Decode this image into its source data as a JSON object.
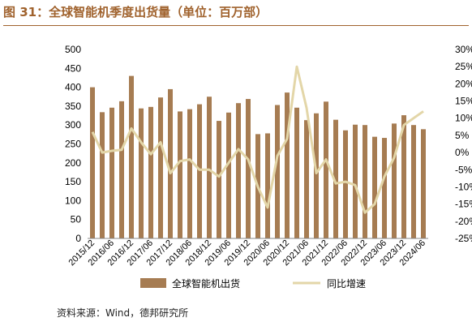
{
  "title": "图 31：全球智能机季度出货量（单位：百万部）",
  "source": "资料来源：Wind，德邦研究所",
  "colors": {
    "bar": "#A67C52",
    "line": "#E3D6A8",
    "title": "#A0622D"
  },
  "chart_data": {
    "type": "bar+line",
    "x_tick_labels": [
      "2015/12",
      "2016/06",
      "2016/12",
      "2017/06",
      "2017/12",
      "2018/06",
      "2018/12",
      "2019/06",
      "2019/12",
      "2020/06",
      "2020/12",
      "2021/06",
      "2021/12",
      "2022/06",
      "2022/12",
      "2023/06",
      "2023/12",
      "2024/06"
    ],
    "x": [
      "2015/12",
      "2016/03",
      "2016/06",
      "2016/09",
      "2016/12",
      "2017/03",
      "2017/06",
      "2017/09",
      "2017/12",
      "2018/03",
      "2018/06",
      "2018/09",
      "2018/12",
      "2019/03",
      "2019/06",
      "2019/09",
      "2019/12",
      "2020/03",
      "2020/06",
      "2020/09",
      "2020/12",
      "2021/03",
      "2021/06",
      "2021/09",
      "2021/12",
      "2022/03",
      "2022/06",
      "2022/09",
      "2022/12",
      "2023/03",
      "2023/06",
      "2023/09",
      "2023/12",
      "2024/03",
      "2024/06"
    ],
    "series": [
      {
        "name": "全球智能机出货",
        "axis": "left",
        "type": "bar",
        "values": [
          400,
          334,
          346,
          363,
          430,
          344,
          348,
          373,
          395,
          336,
          342,
          355,
          375,
          311,
          333,
          358,
          369,
          276,
          278,
          353,
          386,
          346,
          313,
          331,
          362,
          314,
          286,
          301,
          300,
          269,
          266,
          304,
          326,
          300,
          289
        ]
      },
      {
        "name": "同比增速",
        "axis": "right",
        "type": "line",
        "values": [
          6,
          0,
          0.5,
          0.8,
          7,
          3,
          -0.5,
          3,
          -6,
          -2.5,
          -2,
          -5,
          -5,
          -7,
          -3,
          1,
          -2,
          -10,
          -16,
          -1,
          4,
          25,
          13,
          -6,
          -2,
          -9,
          -8.5,
          -9.5,
          -17.5,
          -15,
          -7,
          -1.5,
          8,
          10,
          12
        ]
      }
    ],
    "y_left": {
      "min": 0,
      "max": 500,
      "ticks": [
        "0",
        "50",
        "100",
        "150",
        "200",
        "250",
        "300",
        "350",
        "400",
        "450",
        "500"
      ]
    },
    "y_right": {
      "min": -25,
      "max": 30,
      "ticks": [
        "-25%",
        "-20%",
        "-15%",
        "-10%",
        "-5%",
        "0%",
        "5%",
        "10%",
        "15%",
        "20%",
        "25%",
        "30%"
      ]
    },
    "grid": false,
    "legend_position": "bottom"
  }
}
